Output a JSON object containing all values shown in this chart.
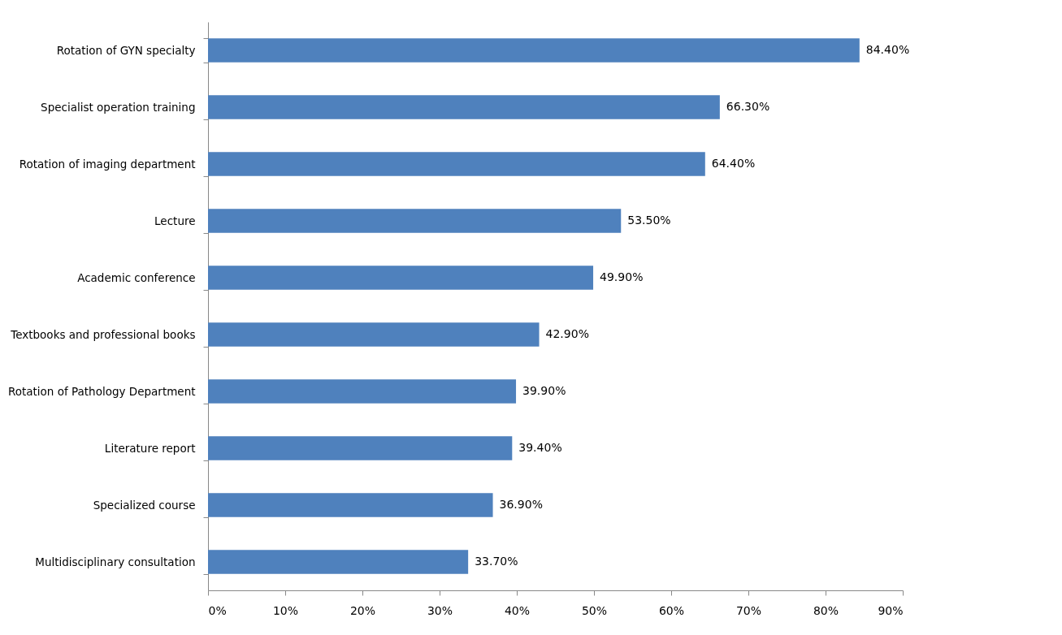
{
  "chart_data": {
    "type": "bar",
    "orientation": "horizontal",
    "categories": [
      "Rotation of GYN specialty",
      "Specialist operation training",
      "Rotation of imaging  department",
      "Lecture",
      "Academic conference",
      "Textbooks and professional  books",
      "Rotation of Pathology Department",
      "Literature report",
      "Specialized course",
      "Multidisciplinary consultation"
    ],
    "values": [
      84.4,
      66.3,
      64.4,
      53.5,
      49.9,
      42.9,
      39.9,
      39.4,
      36.9,
      33.7
    ],
    "value_labels": [
      "84.40%",
      "66.30%",
      "64.40%",
      "53.50%",
      "49.90%",
      "42.90%",
      "39.90%",
      "39.40%",
      "36.90%",
      "33.70%"
    ],
    "color": "#4f81bd",
    "xlim": [
      0,
      90
    ],
    "xticks": [
      {
        "value": 0,
        "label": "0%"
      },
      {
        "value": 10,
        "label": "10%"
      },
      {
        "value": 20,
        "label": "20%"
      },
      {
        "value": 30,
        "label": "30%"
      },
      {
        "value": 40,
        "label": "40%"
      },
      {
        "value": 50,
        "label": "50%"
      },
      {
        "value": 60,
        "label": "60%"
      },
      {
        "value": 70,
        "label": "70%"
      },
      {
        "value": 80,
        "label": "80%"
      },
      {
        "value": 90,
        "label": "90%"
      }
    ]
  }
}
